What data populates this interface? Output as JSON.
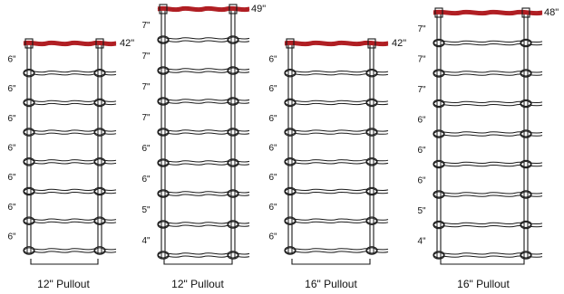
{
  "fences": [
    {
      "height_label": "42\"",
      "spacings": [
        "6\"",
        "6\"",
        "6\"",
        "6\"",
        "6\"",
        "6\"",
        "6\""
      ],
      "pullout_label": "12\" Pullout"
    },
    {
      "height_label": "49\"",
      "spacings": [
        "7\"",
        "7\"",
        "7\"",
        "7\"",
        "6\"",
        "6\"",
        "5\"",
        "4\""
      ],
      "pullout_label": "12\" Pullout"
    },
    {
      "height_label": "42\"",
      "spacings": [
        "6\"",
        "6\"",
        "6\"",
        "6\"",
        "6\"",
        "6\"",
        "6\""
      ],
      "pullout_label": "16\" Pullout"
    },
    {
      "height_label": "48\"",
      "spacings": [
        "7\"",
        "7\"",
        "7\"",
        "6\"",
        "6\"",
        "6\"",
        "5\"",
        "4\""
      ],
      "pullout_label": "16\" Pullout"
    }
  ],
  "colors": {
    "top_wire": "#b01e23",
    "wire": "#1a1a1a",
    "background": "#ffffff"
  }
}
